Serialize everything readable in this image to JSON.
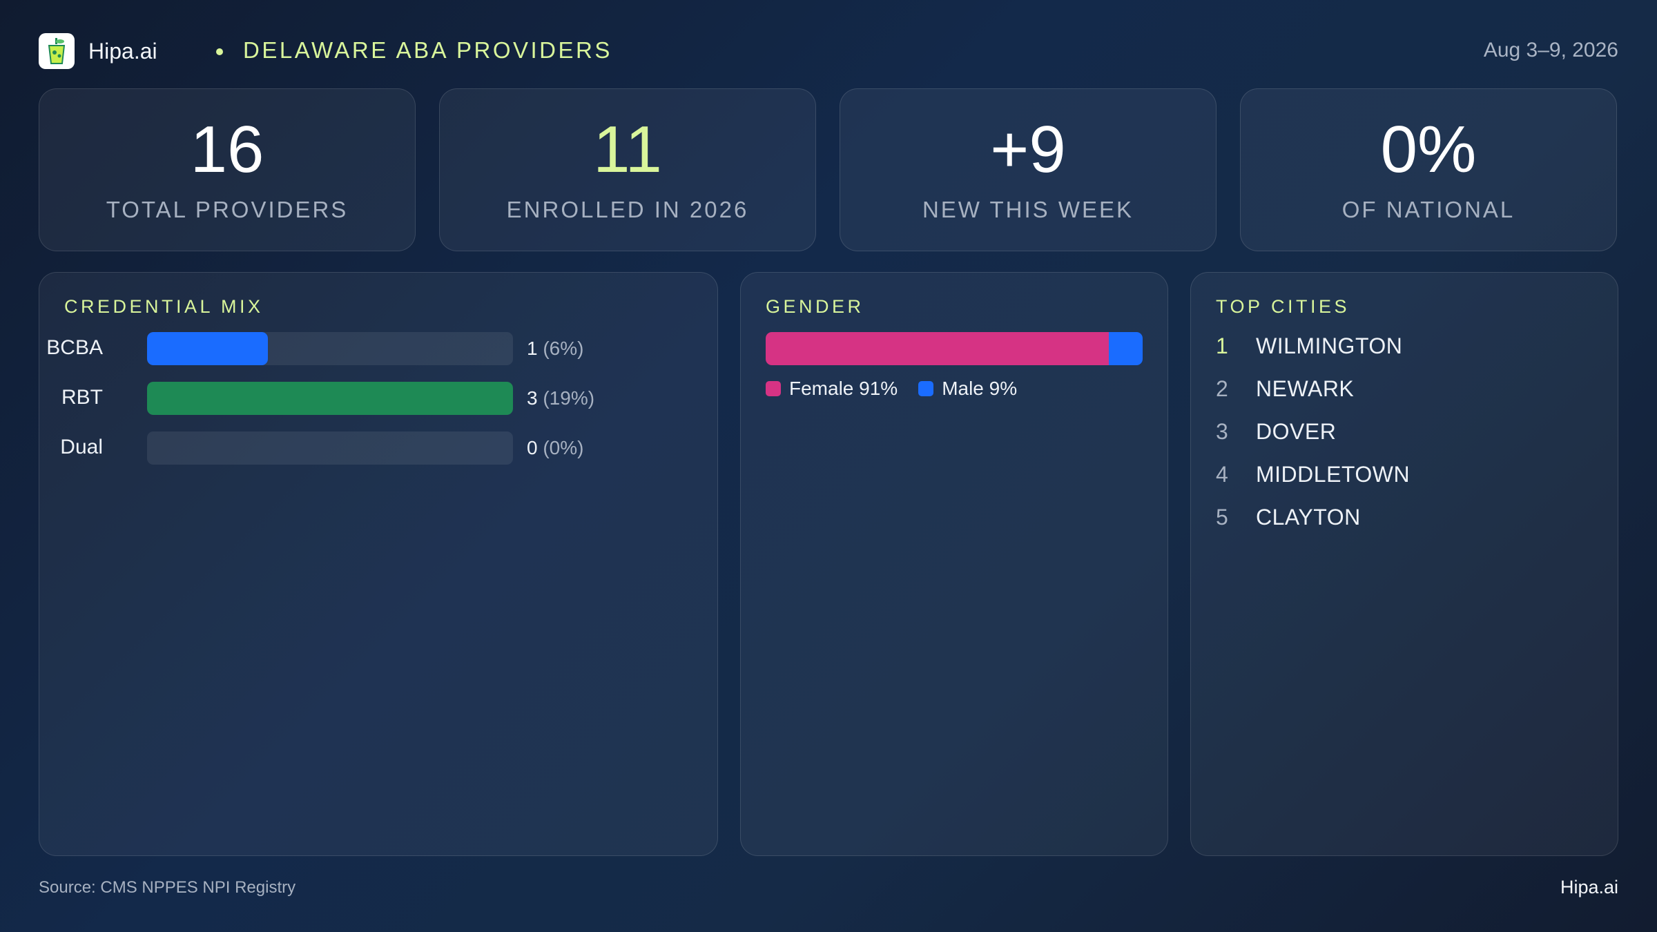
{
  "header": {
    "logo_icon": "juice-cup-icon",
    "brand": "Hipa.ai",
    "title": "DELAWARE  ABA PROVIDERS",
    "date": "Aug 3–9, 2026"
  },
  "stats": [
    {
      "value": "16",
      "label": "TOTAL  PROVIDERS"
    },
    {
      "value": "11",
      "label": "ENROLLED IN 2026"
    },
    {
      "value": "+9",
      "label": "NEW THIS WEEK"
    },
    {
      "value": "0%",
      "label": "OF NATIONAL"
    }
  ],
  "credential_mix": {
    "title": "CREDENTIAL  MIX",
    "rows": [
      {
        "label": "BCBA",
        "count": "1",
        "pct": "(6%)",
        "fraction": 0.33
      },
      {
        "label": "RBT",
        "count": "3",
        "pct": "(19%)",
        "fraction": 1.0
      },
      {
        "label": "Dual",
        "count": "0",
        "pct": "(0%)",
        "fraction": 0.0
      }
    ]
  },
  "gender": {
    "title": "GENDER",
    "segments": [
      {
        "label": "Female 91%",
        "fraction": 0.91
      },
      {
        "label": "Male 9%",
        "fraction": 0.09
      }
    ]
  },
  "top_cities": {
    "title": "TOP CITIES",
    "items": [
      {
        "rank": "1",
        "name": "WILMINGTON"
      },
      {
        "rank": "2",
        "name": "NEWARK"
      },
      {
        "rank": "3",
        "name": "DOVER"
      },
      {
        "rank": "4",
        "name": "MIDDLETOWN"
      },
      {
        "rank": "5",
        "name": "CLAYTON"
      }
    ]
  },
  "footer": {
    "source": "Source: CMS NPPES NPI Registry",
    "brand": "Hipa.ai"
  },
  "colors": {
    "accent": "#d9f59b",
    "bcba": "#1a6cff",
    "rbt": "#1e8a55",
    "female": "#d63384",
    "male": "#1a6cff"
  }
}
